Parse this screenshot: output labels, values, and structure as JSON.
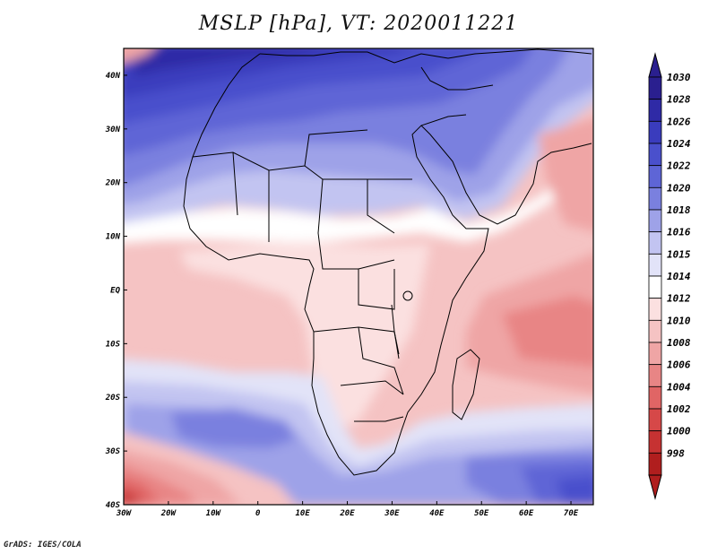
{
  "title": "MSLP [hPa], VT: 2020011221",
  "footer": "GrADS: IGES/COLA",
  "map": {
    "lat_labels": [
      {
        "label": "40N",
        "lat": 40
      },
      {
        "label": "30N",
        "lat": 30
      },
      {
        "label": "20N",
        "lat": 20
      },
      {
        "label": "10N",
        "lat": 10
      },
      {
        "label": "EQ",
        "lat": 0
      },
      {
        "label": "10S",
        "lat": -10
      },
      {
        "label": "20S",
        "lat": -20
      },
      {
        "label": "30S",
        "lat": -30
      },
      {
        "label": "40S",
        "lat": -40
      }
    ],
    "lon_labels": [
      {
        "label": "30W",
        "lon": -30
      },
      {
        "label": "20W",
        "lon": -20
      },
      {
        "label": "10W",
        "lon": -10
      },
      {
        "label": "0",
        "lon": 0
      },
      {
        "label": "10E",
        "lon": 10
      },
      {
        "label": "20E",
        "lon": 20
      },
      {
        "label": "30E",
        "lon": 30
      },
      {
        "label": "40E",
        "lon": 40
      },
      {
        "label": "50E",
        "lon": 50
      },
      {
        "label": "60E",
        "lon": 60
      },
      {
        "label": "70E",
        "lon": 70
      }
    ],
    "lon_range": [
      -30,
      75
    ],
    "lat_range": [
      -40,
      45
    ]
  },
  "colorbar": {
    "levels": [
      {
        "label": "1030",
        "color": "#2a1f8f"
      },
      {
        "label": "1028",
        "color": "#2f2aa6"
      },
      {
        "label": "1026",
        "color": "#3a3cbd"
      },
      {
        "label": "1024",
        "color": "#4a50cc"
      },
      {
        "label": "1022",
        "color": "#5e65d6"
      },
      {
        "label": "1020",
        "color": "#7a80df"
      },
      {
        "label": "1018",
        "color": "#9ea2e8"
      },
      {
        "label": "1016",
        "color": "#c2c4f1"
      },
      {
        "label": "1015",
        "color": "#e2e3f8"
      },
      {
        "label": "1014",
        "color": "#ffffff"
      },
      {
        "label": "1012",
        "color": "#fbe0e0"
      },
      {
        "label": "1010",
        "color": "#f5c3c3"
      },
      {
        "label": "1008",
        "color": "#efa5a5"
      },
      {
        "label": "1006",
        "color": "#e88585"
      },
      {
        "label": "1004",
        "color": "#e06565"
      },
      {
        "label": "1002",
        "color": "#d64848"
      },
      {
        "label": "1000",
        "color": "#c63232"
      },
      {
        "label": "998",
        "color": "#b01e1e"
      }
    ]
  }
}
